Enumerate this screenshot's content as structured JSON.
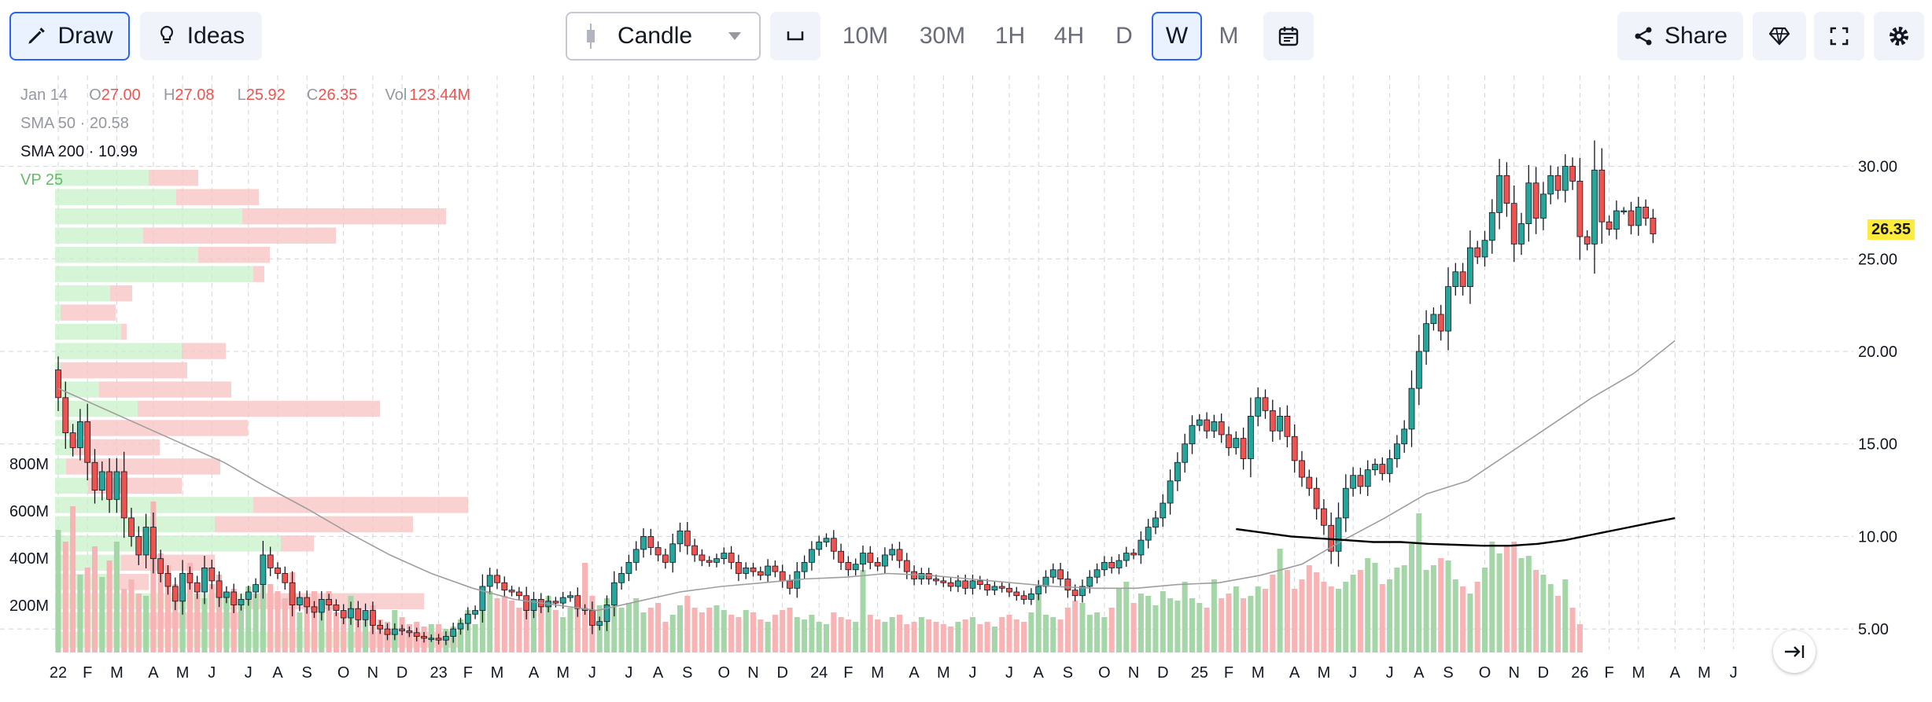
{
  "toolbar": {
    "draw_label": "Draw",
    "ideas_label": "Ideas",
    "chart_type": "Candle",
    "timeframes": [
      "10M",
      "30M",
      "1H",
      "4H",
      "D",
      "W",
      "M"
    ],
    "selected_timeframe": "W",
    "share_label": "Share"
  },
  "legend": {
    "date": "Jan 14",
    "open_label": "O",
    "open": "27.00",
    "high_label": "H",
    "high": "27.08",
    "low_label": "L",
    "low": "25.92",
    "close_label": "C",
    "close": "26.35",
    "vol_label": "Vol",
    "vol": "123.44M",
    "sma50_label": "SMA 50",
    "sma50_value": "20.58",
    "sma200_label": "SMA 200",
    "sma200_value": "10.99",
    "vp_label": "VP 25"
  },
  "price_badge": "26.35",
  "colors": {
    "up": "#26a69a",
    "down": "#ef5350",
    "up_vol": "#a5d6a7",
    "down_vol": "#f8b4b4",
    "sma50": "#9e9e9e",
    "sma200": "#000000",
    "badge": "#ffeb3b",
    "accent": "#2962ff"
  },
  "chart_data": {
    "type": "candlestick",
    "y_ticks": [
      "30.00",
      "25.00",
      "20.00",
      "15.00",
      "10.00",
      "5.00"
    ],
    "y_tick_values": [
      30,
      25,
      20,
      15,
      10,
      5
    ],
    "ylim": [
      3.9,
      34.4
    ],
    "volume_ticks": [
      "800M",
      "600M",
      "400M",
      "200M"
    ],
    "volume_tick_values": [
      800,
      600,
      400,
      200
    ],
    "volume_max": 1050,
    "x_labels": [
      "22",
      "F",
      "M",
      "A",
      "M",
      "J",
      "J",
      "A",
      "S",
      "O",
      "N",
      "D",
      "23",
      "F",
      "M",
      "A",
      "M",
      "J",
      "J",
      "A",
      "S",
      "O",
      "N",
      "D",
      "24",
      "F",
      "M",
      "A",
      "M",
      "J",
      "J",
      "A",
      "S",
      "O",
      "N",
      "D",
      "25",
      "F",
      "M",
      "A",
      "M",
      "J",
      "J",
      "A",
      "S",
      "O",
      "N",
      "D",
      "26",
      "F",
      "M",
      "A",
      "M",
      "J"
    ],
    "x_label_weeks": [
      0,
      4,
      8,
      13,
      17,
      21,
      26,
      30,
      34,
      39,
      43,
      47,
      52,
      56,
      60,
      65,
      69,
      73,
      78,
      82,
      86,
      91,
      95,
      99,
      104,
      108,
      112,
      117,
      121,
      125,
      130,
      134,
      138,
      143,
      147,
      151,
      156,
      160,
      164,
      169,
      173,
      177,
      182,
      186,
      190,
      195,
      199,
      203,
      208,
      212,
      216,
      221,
      225,
      229
    ],
    "weekly_closes": [
      17.5,
      15.6,
      14.8,
      16.2,
      14.0,
      12.5,
      13.5,
      12.0,
      13.5,
      11.0,
      10.0,
      9.0,
      10.5,
      8.8,
      8.0,
      7.3,
      6.5,
      8.0,
      7.5,
      7.0,
      8.3,
      7.6,
      6.7,
      7.0,
      6.3,
      6.6,
      7.0,
      7.4,
      9.0,
      8.3,
      8.0,
      7.5,
      6.3,
      6.7,
      6.2,
      5.9,
      6.6,
      6.3,
      6.0,
      5.6,
      6.1,
      5.5,
      6.0,
      5.2,
      5.0,
      4.7,
      5.0,
      4.9,
      4.8,
      4.6,
      4.5,
      4.5,
      4.4,
      4.6,
      5.0,
      5.3,
      5.8,
      6.0,
      7.3,
      7.9,
      7.5,
      7.1,
      7.0,
      6.8,
      6.0,
      6.6,
      6.2,
      6.5,
      6.4,
      6.7,
      6.8,
      6.1,
      6.0,
      5.2,
      5.4,
      6.3,
      7.5,
      8.0,
      8.6,
      9.3,
      10.0,
      9.4,
      9.0,
      8.6,
      9.6,
      10.3,
      9.5,
      9.0,
      8.7,
      8.6,
      8.8,
      9.1,
      8.6,
      8.0,
      8.3,
      8.1,
      7.9,
      8.4,
      8.1,
      7.6,
      7.2,
      8.1,
      8.6,
      9.3,
      9.7,
      9.9,
      9.2,
      8.6,
      8.2,
      8.5,
      9.1,
      8.6,
      8.4,
      9.0,
      9.3,
      8.7,
      8.1,
      7.7,
      8.0,
      7.7,
      7.6,
      7.5,
      7.3,
      7.6,
      7.2,
      7.6,
      7.4,
      7.1,
      7.3,
      7.2,
      7.0,
      6.8,
      6.6,
      6.9,
      7.3,
      7.8,
      8.2,
      7.7,
      7.1,
      6.8,
      7.3,
      7.8,
      8.2,
      8.6,
      8.3,
      8.7,
      9.1,
      9.0,
      9.8,
      10.5,
      11.0,
      11.8,
      13.0,
      14.0,
      15.0,
      16.0,
      16.3,
      15.7,
      16.2,
      15.5,
      14.8,
      15.3,
      14.2,
      16.5,
      17.5,
      16.8,
      15.7,
      16.5,
      15.4,
      14.1,
      13.2,
      12.6,
      11.5,
      10.6,
      9.2,
      11.0,
      12.6,
      13.3,
      12.7,
      13.6,
      13.9,
      13.4,
      14.2,
      15.0,
      15.8,
      18.0,
      20.0,
      21.5,
      22.0,
      21.1,
      23.5,
      24.3,
      23.5,
      25.6,
      25.1,
      26.0,
      27.5,
      29.5,
      28.0,
      25.8,
      26.9,
      29.1,
      27.2,
      28.5,
      29.5,
      28.7,
      30.0,
      29.2,
      26.2,
      25.8,
      29.8,
      27.0,
      26.6,
      27.6,
      27.6,
      26.8,
      27.8,
      27.2,
      26.35
    ],
    "weekly_volumes": [
      520,
      470,
      620,
      330,
      360,
      450,
      320,
      390,
      470,
      270,
      310,
      250,
      240,
      640,
      420,
      370,
      290,
      330,
      380,
      250,
      230,
      290,
      330,
      240,
      270,
      210,
      280,
      250,
      330,
      290,
      260,
      230,
      340,
      170,
      230,
      260,
      190,
      260,
      170,
      180,
      240,
      150,
      160,
      200,
      140,
      130,
      180,
      150,
      120,
      130,
      110,
      120,
      120,
      100,
      110,
      140,
      180,
      120,
      200,
      260,
      230,
      240,
      220,
      190,
      200,
      220,
      210,
      240,
      180,
      150,
      190,
      210,
      380,
      240,
      200,
      230,
      210,
      190,
      210,
      230,
      170,
      190,
      210,
      130,
      160,
      200,
      240,
      190,
      170,
      190,
      200,
      180,
      160,
      150,
      180,
      170,
      140,
      130,
      160,
      180,
      190,
      150,
      140,
      160,
      130,
      120,
      170,
      150,
      140,
      130,
      350,
      160,
      140,
      130,
      150,
      160,
      120,
      130,
      150,
      140,
      130,
      120,
      110,
      130,
      140,
      150,
      120,
      130,
      110,
      150,
      160,
      140,
      130,
      170,
      280,
      160,
      150,
      140,
      190,
      220,
      210,
      160,
      170,
      150,
      190,
      270,
      300,
      210,
      250,
      240,
      200,
      260,
      230,
      220,
      300,
      230,
      210,
      190,
      310,
      230,
      250,
      280,
      230,
      240,
      280,
      270,
      330,
      440,
      350,
      270,
      310,
      370,
      340,
      300,
      280,
      270,
      300,
      330,
      350,
      400,
      380,
      290,
      310,
      360,
      370,
      460,
      590,
      350,
      370,
      400,
      390,
      310,
      280,
      250,
      300,
      360,
      470,
      420,
      450,
      470,
      400,
      410,
      350,
      330,
      290,
      240,
      310,
      190,
      120
    ],
    "vp_green": [
      0.17,
      0.22,
      0.34,
      0.16,
      0.26,
      0.36,
      0.1,
      0.01,
      0.12,
      0.23,
      0.01,
      0.08,
      0.15,
      0.05,
      0.03,
      0.02,
      0.06,
      0.36,
      0.29,
      0.41,
      0.12,
      0.11,
      0.35,
      0.17,
      0.54
    ],
    "vp_red": [
      0.09,
      0.15,
      0.37,
      0.35,
      0.13,
      0.02,
      0.04,
      0.1,
      0.01,
      0.08,
      0.23,
      0.24,
      0.44,
      0.3,
      0.16,
      0.28,
      0.17,
      0.39,
      0.36,
      0.06,
      0.17,
      0.06,
      0.32,
      0.17,
      0.2
    ],
    "sma50": [
      18.0,
      17.0,
      16.0,
      15.0,
      14.0,
      12.7,
      11.5,
      10.2,
      9.0,
      8.0,
      7.2,
      6.6,
      6.3,
      6.0,
      6.5,
      7.0,
      7.3,
      7.5,
      7.7,
      7.8,
      8.0,
      7.9,
      7.7,
      7.5,
      7.3,
      7.2,
      7.2,
      7.4,
      7.5,
      7.9,
      8.5,
      9.8,
      11.0,
      12.3,
      13.0,
      14.5,
      16.0,
      17.5,
      18.8,
      20.58
    ],
    "sma200": [
      10.4,
      10.2,
      10.0,
      9.9,
      9.8,
      9.7,
      9.7,
      9.6,
      9.55,
      9.5,
      9.5,
      9.6,
      9.8,
      10.1,
      10.4,
      10.7,
      10.99
    ]
  }
}
